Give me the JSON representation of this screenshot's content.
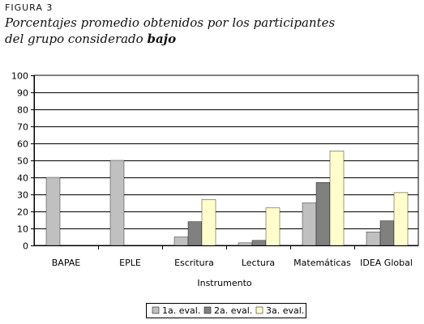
{
  "figure": {
    "label": "FIGURA 3",
    "title_line1": "Porcentajes promedio obtenidos por los participantes",
    "title_line2_prefix": "del grupo considerado ",
    "title_line2_bold": "bajo"
  },
  "chart_data": {
    "type": "bar",
    "categories": [
      "BAPAE",
      "EPLE",
      "Escritura",
      "Lectura",
      "Matemáticas",
      "IDEA Global"
    ],
    "series": [
      {
        "name": "1a. eval.",
        "color": "#c0c0c0",
        "values": [
          40,
          50,
          5,
          1.5,
          25,
          8
        ]
      },
      {
        "name": "2a. eval.",
        "color": "#808080",
        "values": [
          null,
          null,
          14,
          3,
          37,
          14.5
        ]
      },
      {
        "name": "3a. eval.",
        "color": "#ffffcc",
        "values": [
          null,
          null,
          27,
          22,
          55.5,
          31
        ]
      }
    ],
    "xlabel": "Instrumento",
    "ylabel": "",
    "ylim": [
      0,
      100
    ],
    "yticks": [
      "0",
      "10",
      "20",
      "30",
      "40",
      "50",
      "60",
      "70",
      "80",
      "90",
      "100"
    ],
    "grid": true,
    "legend_position": "bottom"
  }
}
